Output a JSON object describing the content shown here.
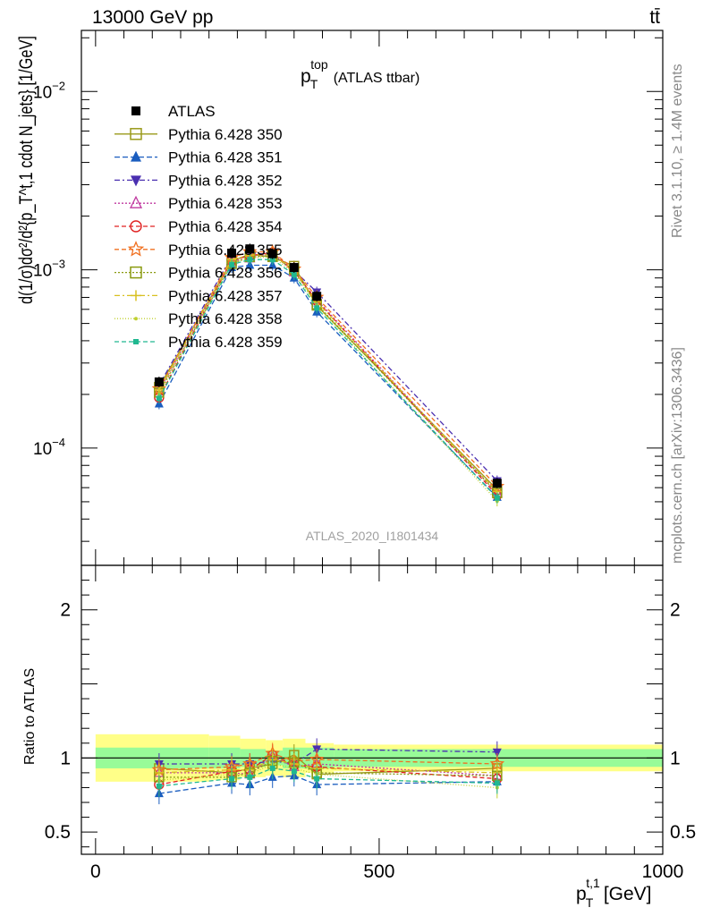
{
  "header": {
    "energy_label": "13000 GeV pp",
    "process_label": "tt̄"
  },
  "side_labels": {
    "rivet": "Rivet 3.1.10, ≥ 1.4M events",
    "mcplots": "mcplots.cern.ch [arXiv:1306.3436]"
  },
  "chart_data": [
    {
      "type": "line",
      "title": "p_T^top (ATLAS ttbar)",
      "title_main": "p",
      "title_sub": "T",
      "title_sup": "top",
      "title_rest": "(ATLAS ttbar)",
      "watermark": "ATLAS_2020_I1801434",
      "ylabel": "d(1/σ)dσ²/d²{p_T^t,1 cdot N_jets} [1/GeV]",
      "y_scale": "log",
      "ylim": [
        2.2e-05,
        0.022
      ],
      "xlim": [
        -25,
        1000
      ],
      "y_tick_labels": [
        "10^-4",
        "10^-3",
        "10^-2"
      ],
      "legend_placement": "top-left",
      "x": [
        112,
        240,
        272,
        312,
        350,
        390,
        708
      ],
      "series": [
        {
          "name": "ATLAS",
          "color": "#000000",
          "marker": "filled-square",
          "dash": "none",
          "values": [
            0.000235,
            0.00124,
            0.00131,
            0.00123,
            0.00103,
            0.00071,
            6.35e-05
          ]
        },
        {
          "name": "Pythia 6.428 350",
          "color": "#9a9a1a",
          "marker": "open-square",
          "dash": "solid",
          "values": [
            0.00022,
            0.00112,
            0.00122,
            0.00118,
            0.00105,
            0.00063,
            5.85e-05
          ]
        },
        {
          "name": "Pythia 6.428 351",
          "color": "#1a5dbf",
          "marker": "filled-triangle-up",
          "dash": "6,3",
          "values": [
            0.000177,
            0.00103,
            0.00106,
            0.00106,
            0.0009,
            0.00058,
            5.3e-05
          ]
        },
        {
          "name": "Pythia 6.428 352",
          "color": "#4a2fb0",
          "marker": "filled-triangle-down",
          "dash": "6,3,2,3",
          "values": [
            0.000225,
            0.00119,
            0.00125,
            0.00121,
            0.00099,
            0.00075,
            6.55e-05
          ]
        },
        {
          "name": "Pythia 6.428 353",
          "color": "#c03aa0",
          "marker": "open-triangle-up",
          "dash": "2,2",
          "values": [
            0.00021,
            0.00112,
            0.00116,
            0.00124,
            0.00097,
            0.00068,
            5.6e-05
          ]
        },
        {
          "name": "Pythia 6.428 354",
          "color": "#e02020",
          "marker": "open-circle",
          "dash": "5,3",
          "values": [
            0.000192,
            0.00113,
            0.0012,
            0.00125,
            0.00098,
            0.00067,
            5.45e-05
          ]
        },
        {
          "name": "Pythia 6.428 355",
          "color": "#f07020",
          "marker": "open-star",
          "dash": "5,3",
          "values": [
            0.000215,
            0.00117,
            0.00126,
            0.00126,
            0.00101,
            0.0007,
            6.1e-05
          ]
        },
        {
          "name": "Pythia 6.428 356",
          "color": "#8a9a10",
          "marker": "open-square",
          "dash": "2,2",
          "values": [
            0.000205,
            0.00108,
            0.00118,
            0.0012,
            0.001,
            0.00064,
            5.6e-05
          ]
        },
        {
          "name": "Pythia 6.428 357",
          "color": "#d8c020",
          "marker": "plus",
          "dash": "6,3,2,3",
          "values": [
            0.000212,
            0.00114,
            0.00121,
            0.00122,
            0.00099,
            0.00066,
            5.7e-05
          ]
        },
        {
          "name": "Pythia 6.428 358",
          "color": "#c0d030",
          "marker": "dot",
          "dash": "1,2",
          "values": [
            0.0002,
            0.0011,
            0.00117,
            0.00118,
            0.00096,
            0.00063,
            5.05e-05
          ]
        },
        {
          "name": "Pythia 6.428 359",
          "color": "#20b890",
          "marker": "filled-small-square",
          "dash": "5,3",
          "values": [
            0.00019,
            0.00107,
            0.00114,
            0.00114,
            0.00094,
            0.00061,
            5.25e-05
          ]
        }
      ]
    },
    {
      "type": "line",
      "ylabel": "Ratio to ATLAS",
      "xlabel": "p_T^t,1 [GeV]",
      "xlabel_main": "p",
      "xlabel_sub": "T",
      "xlabel_sup": "t,1",
      "xlabel_unit": "[GeV]",
      "ylim": [
        0.35,
        2.3
      ],
      "xlim": [
        -25,
        1000
      ],
      "x_tick_labels": [
        "0",
        "500",
        "1000"
      ],
      "y_tick_labels": [
        "0.5",
        "1",
        "2"
      ],
      "reference_line": 1,
      "bands": {
        "bins": [
          [
            0,
            200
          ],
          [
            200,
            255
          ],
          [
            255,
            300
          ],
          [
            300,
            330
          ],
          [
            330,
            370
          ],
          [
            370,
            420
          ],
          [
            420,
            1000
          ]
        ],
        "inner": [
          0.07,
          0.07,
          0.06,
          0.05,
          0.07,
          0.07,
          0.06
        ],
        "outer": [
          0.16,
          0.15,
          0.13,
          0.12,
          0.13,
          0.1,
          0.09
        ],
        "inner_color": "#98fb98",
        "outer_color": "#ffff88"
      },
      "x": [
        112,
        240,
        272,
        312,
        350,
        390,
        708
      ],
      "series": [
        {
          "name": "Pythia 6.428 350",
          "values": [
            0.93,
            0.9,
            0.93,
            0.96,
            1.02,
            0.89,
            0.93
          ]
        },
        {
          "name": "Pythia 6.428 351",
          "values": [
            0.76,
            0.83,
            0.82,
            0.87,
            0.88,
            0.82,
            0.84
          ]
        },
        {
          "name": "Pythia 6.428 352",
          "values": [
            0.96,
            0.96,
            0.96,
            0.98,
            0.96,
            1.06,
            1.04
          ]
        },
        {
          "name": "Pythia 6.428 353",
          "values": [
            0.9,
            0.9,
            0.89,
            1.01,
            0.94,
            0.96,
            0.88
          ]
        },
        {
          "name": "Pythia 6.428 354",
          "values": [
            0.82,
            0.91,
            0.92,
            1.02,
            0.95,
            0.94,
            0.86
          ]
        },
        {
          "name": "Pythia 6.428 355",
          "values": [
            0.92,
            0.94,
            0.96,
            1.03,
            0.98,
            0.99,
            0.96
          ]
        },
        {
          "name": "Pythia 6.428 356",
          "values": [
            0.87,
            0.87,
            0.9,
            0.98,
            0.97,
            0.9,
            0.88
          ]
        },
        {
          "name": "Pythia 6.428 357",
          "values": [
            0.9,
            0.92,
            0.92,
            0.99,
            0.96,
            0.93,
            0.9
          ]
        },
        {
          "name": "Pythia 6.428 358",
          "values": [
            0.85,
            0.89,
            0.89,
            0.96,
            0.93,
            0.89,
            0.8
          ]
        },
        {
          "name": "Pythia 6.428 359",
          "values": [
            0.81,
            0.86,
            0.87,
            0.93,
            0.91,
            0.86,
            0.83
          ]
        }
      ]
    }
  ]
}
